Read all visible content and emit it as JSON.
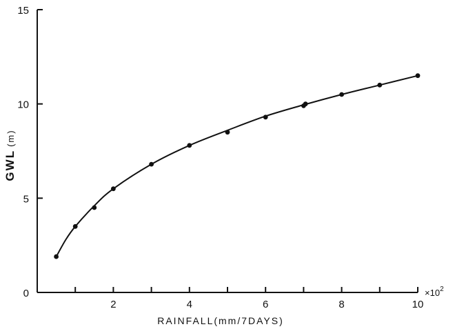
{
  "chart_data": {
    "type": "scatter",
    "title": "",
    "xlabel": "RAINFALL(mm/7DAYS)",
    "ylabel": "GWL (m)",
    "x_multiplier": "×10",
    "x_multiplier_exponent": "2",
    "xlim": [
      0,
      10
    ],
    "ylim": [
      0,
      15
    ],
    "xticks": [
      1,
      2,
      3,
      4,
      5,
      6,
      7,
      8,
      9,
      10
    ],
    "xtick_labels": [
      "2",
      "4",
      "6",
      "8",
      "10"
    ],
    "xtick_label_values": [
      2,
      4,
      6,
      8,
      10
    ],
    "yticks": [
      0,
      5,
      10,
      15
    ],
    "ytick_labels": [
      "0",
      "5",
      "10",
      "15"
    ],
    "grid": false,
    "series": [
      {
        "style": "points",
        "x": [
          0.5,
          1,
          1.5,
          2,
          3,
          4,
          5,
          6,
          7,
          7.05,
          8,
          9,
          10
        ],
        "y": [
          1.9,
          3.5,
          4.5,
          5.5,
          6.8,
          7.8,
          8.5,
          9.3,
          9.9,
          10.0,
          10.5,
          11.0,
          11.5
        ]
      },
      {
        "style": "line",
        "x": [
          0.5,
          0.75,
          1,
          1.5,
          2,
          3,
          4,
          5,
          6,
          7,
          8,
          9,
          10
        ],
        "y": [
          1.9,
          2.8,
          3.5,
          4.6,
          5.5,
          6.8,
          7.8,
          8.6,
          9.35,
          9.95,
          10.5,
          11.0,
          11.5
        ]
      }
    ]
  }
}
